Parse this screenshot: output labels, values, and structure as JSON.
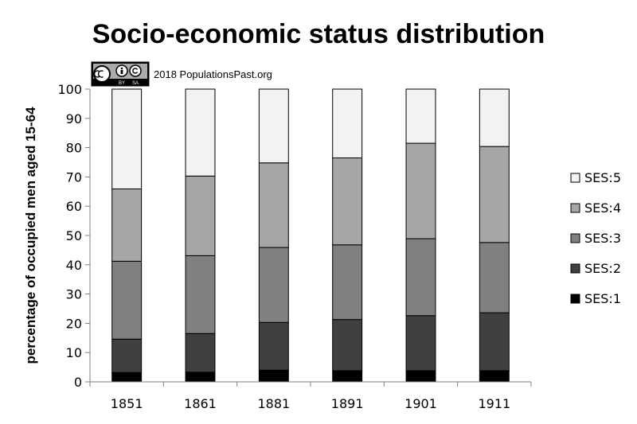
{
  "chart_data": {
    "type": "bar",
    "stacked": true,
    "title": "Socio-economic status distribution",
    "ylabel": "percentage of occupied men aged 15-64",
    "ylim": [
      0,
      100
    ],
    "yticks": [
      "0",
      "10",
      "20",
      "30",
      "40",
      "50",
      "60",
      "70",
      "80",
      "90",
      "100"
    ],
    "categories": [
      "1851",
      "1861",
      "1881",
      "1891",
      "1901",
      "1911"
    ],
    "legend_position": "right",
    "series": [
      {
        "name": "SES:1",
        "color": "#000000",
        "values": [
          3.2,
          3.3,
          4.0,
          3.8,
          3.8,
          3.8
        ]
      },
      {
        "name": "SES:2",
        "color": "#404040",
        "values": [
          11.4,
          13.2,
          16.3,
          17.5,
          18.8,
          19.8
        ]
      },
      {
        "name": "SES:3",
        "color": "#808080",
        "values": [
          26.6,
          26.6,
          25.6,
          25.5,
          26.3,
          24.0
        ]
      },
      {
        "name": "SES:4",
        "color": "#a6a6a6",
        "values": [
          24.7,
          27.2,
          28.9,
          29.7,
          32.6,
          32.8
        ]
      },
      {
        "name": "SES:5",
        "color": "#f2f2f2",
        "values": [
          34.1,
          29.7,
          25.2,
          23.5,
          18.5,
          19.6
        ]
      }
    ]
  },
  "credit": {
    "license_badge": "cc-by-sa-badge",
    "text": "2018 PopulationsPast.org"
  }
}
